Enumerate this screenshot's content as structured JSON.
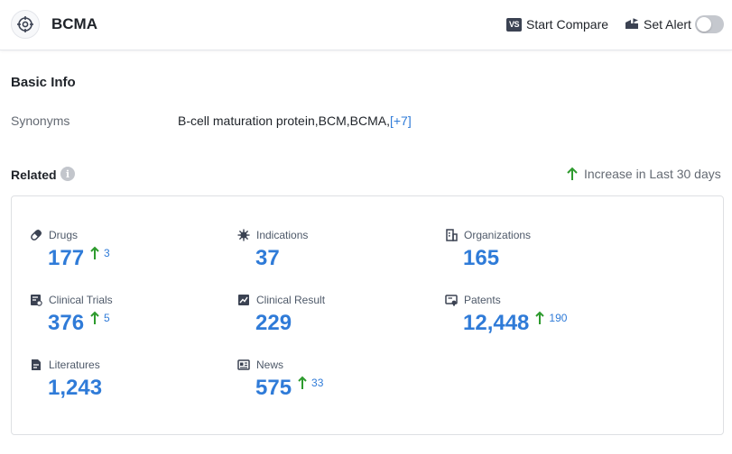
{
  "header": {
    "title": "BCMA",
    "compare_badge": "VS",
    "compare_label": "Start Compare",
    "alert_label": "Set Alert",
    "alert_enabled": false
  },
  "basic_info": {
    "title": "Basic Info",
    "synonyms_label": "Synonyms",
    "synonyms_value": "B-cell maturation protein,BCM,BCMA,",
    "synonyms_more": "[+7]"
  },
  "related": {
    "title": "Related",
    "info_glyph": "i",
    "legend_text": "Increase in Last 30 days",
    "colors": {
      "value": "#2f7bd8",
      "increase_arrow": "#2e9b2e"
    },
    "items": [
      {
        "label": "Drugs",
        "value": "177",
        "increase": "3",
        "icon": "pill-icon"
      },
      {
        "label": "Indications",
        "value": "37",
        "increase": "",
        "icon": "virus-icon"
      },
      {
        "label": "Organizations",
        "value": "165",
        "increase": "",
        "icon": "building-icon"
      },
      {
        "label": "Clinical Trials",
        "value": "376",
        "increase": "5",
        "icon": "clinical-trials-icon"
      },
      {
        "label": "Clinical Result",
        "value": "229",
        "increase": "",
        "icon": "chart-document-icon"
      },
      {
        "label": "Patents",
        "value": "12,448",
        "increase": "190",
        "icon": "patent-icon"
      },
      {
        "label": "Literatures",
        "value": "1,243",
        "increase": "",
        "icon": "literature-icon"
      },
      {
        "label": "News",
        "value": "575",
        "increase": "33",
        "icon": "newspaper-icon"
      }
    ]
  }
}
